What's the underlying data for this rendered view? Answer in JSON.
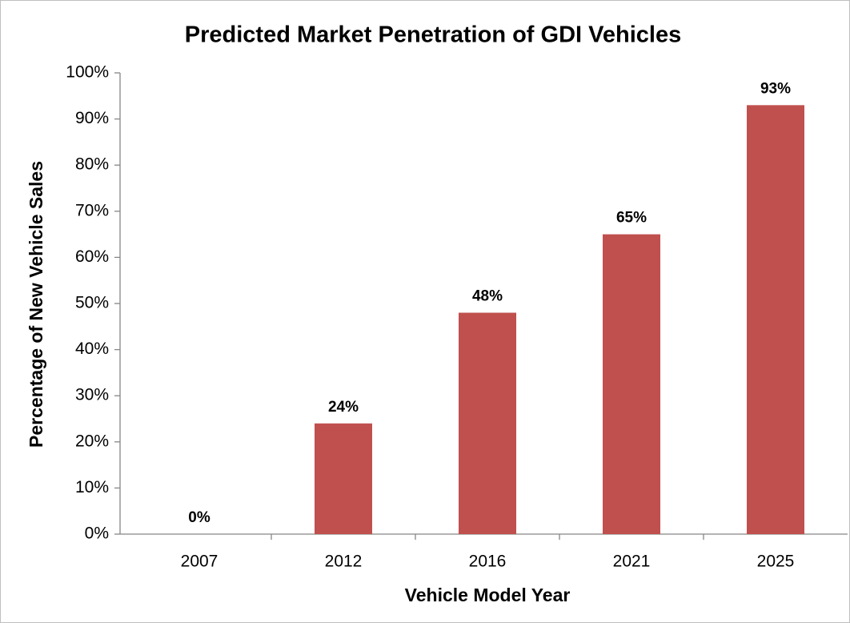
{
  "chart_data": {
    "type": "bar",
    "title": "Predicted Market Penetration of GDI Vehicles",
    "x_label": "Vehicle Model Year",
    "y_label": "Percentage of New Vehicle Sales",
    "categories": [
      "2007",
      "2012",
      "2016",
      "2021",
      "2025"
    ],
    "values": [
      0,
      24,
      48,
      65,
      93
    ],
    "value_labels": [
      "0%",
      "24%",
      "48%",
      "65%",
      "93%"
    ],
    "color": "#c0504d",
    "ylim": [
      0,
      100
    ],
    "yticks": [
      {
        "value": 0,
        "label": "0%"
      },
      {
        "value": 10,
        "label": "10%"
      },
      {
        "value": 20,
        "label": "20%"
      },
      {
        "value": 30,
        "label": "30%"
      },
      {
        "value": 40,
        "label": "40%"
      },
      {
        "value": 50,
        "label": "50%"
      },
      {
        "value": 60,
        "label": "60%"
      },
      {
        "value": 70,
        "label": "70%"
      },
      {
        "value": 80,
        "label": "80%"
      },
      {
        "value": 90,
        "label": "90%"
      },
      {
        "value": 100,
        "label": "100%"
      }
    ],
    "grid": false
  }
}
